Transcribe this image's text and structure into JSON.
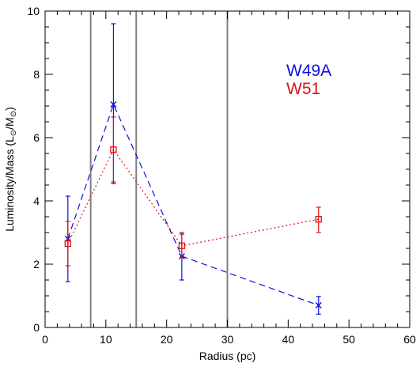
{
  "chart_data": {
    "type": "line",
    "xlabel": "Radius (pc)",
    "ylabel_main": "Luminosity/Mass (L",
    "ylabel_mid": "/M",
    "ylabel_end": ")",
    "ylabel_sun": "⊙",
    "xlim": [
      0,
      60
    ],
    "ylim": [
      0,
      10
    ],
    "x_ticks": [
      "0",
      "10",
      "20",
      "30",
      "40",
      "50",
      "60"
    ],
    "y_ticks": [
      "0",
      "2",
      "4",
      "6",
      "8",
      "10"
    ],
    "vertical_lines": [
      7.5,
      15,
      30
    ],
    "vline_color": "#808080",
    "series": [
      {
        "name": "W49A",
        "color": "#1010e0",
        "linestyle": "dashed",
        "marker": "x",
        "x": [
          3.75,
          11.25,
          22.5,
          45
        ],
        "y": [
          2.8,
          7.05,
          2.25,
          0.7
        ],
        "err_low": [
          1.45,
          4.55,
          1.5,
          0.42
        ],
        "err_high": [
          4.15,
          9.6,
          2.95,
          0.98
        ]
      },
      {
        "name": "W51",
        "color": "#e01010",
        "linestyle": "dotted",
        "marker": "square",
        "x": [
          3.75,
          11.25,
          22.5,
          45
        ],
        "y": [
          2.65,
          5.62,
          2.58,
          3.42
        ],
        "err_low": [
          1.95,
          4.6,
          2.25,
          3.0
        ],
        "err_high": [
          3.35,
          6.65,
          3.0,
          3.8
        ]
      }
    ],
    "legend": {
      "placement": "top-right",
      "entries": [
        "W49A",
        "W51"
      ]
    }
  }
}
